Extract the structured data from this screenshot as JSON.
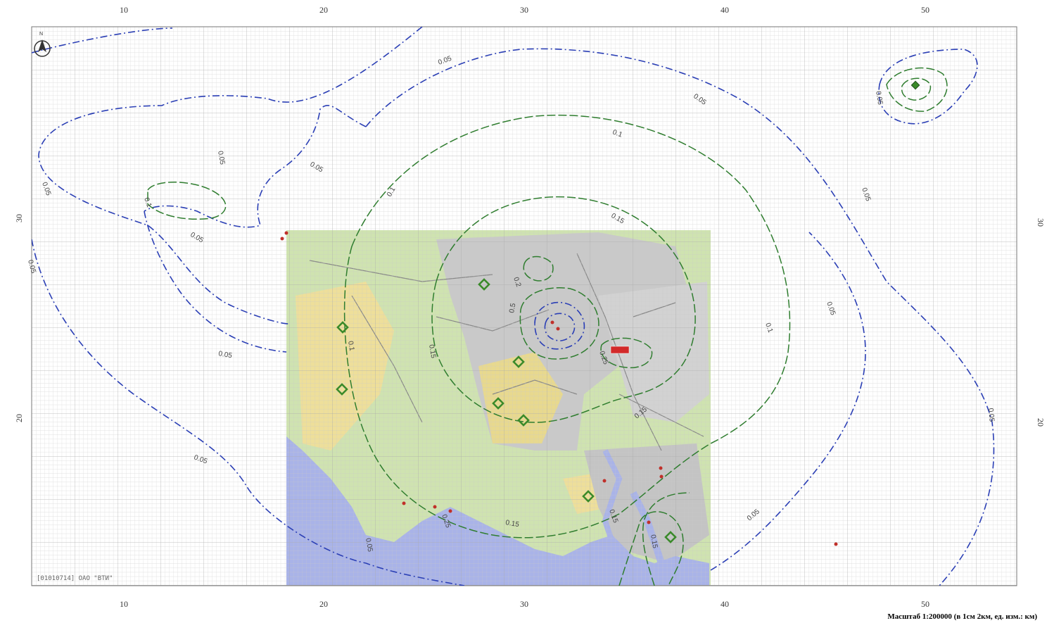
{
  "map": {
    "x_axis_ticks": [
      "10",
      "20",
      "30",
      "40",
      "50"
    ],
    "y_axis_ticks": [
      "30",
      "20"
    ],
    "north_label": "N",
    "scale_caption": "Масштаб 1:200000 (в 1см 2км, ед. изм.: км)",
    "watermark": "[01010714] ОАО \"ВТИ\"",
    "contour_labels": {
      "blue_outer": "0.05",
      "blue_outer_alt": "0.05",
      "blue_mid": "0.05",
      "blue_top": "0.05",
      "blue_right": "0.05",
      "blue_right2": "0.05",
      "blue_bottom_left": "0.05",
      "blue_bottom_right": "0.05",
      "blue_left_far": "0.05",
      "blue_left_inner": "0.05",
      "green_outer": "0.1",
      "green_top": "0.1",
      "green_right": "0.1",
      "green_left": "0.1",
      "green_bottom": "0.15",
      "green_mid": "0.15",
      "green_mid_top": "0.15",
      "green_inner_a": "0.2",
      "green_inner_b": "0.25",
      "green_inner_c": "0.5",
      "green_small_left": "0.1",
      "green_east": "0.25",
      "green_se": "0.15"
    },
    "colors": {
      "blue_contour": "#2b3fb5",
      "green_contour": "#2f7d2f",
      "water": "#a9b3e8",
      "land": "#cfe3b0",
      "urban": "#c9c9c9",
      "residential": "#eedf9a",
      "marker_green": "#3a8a2a",
      "marker_red": "#c0302a"
    }
  }
}
